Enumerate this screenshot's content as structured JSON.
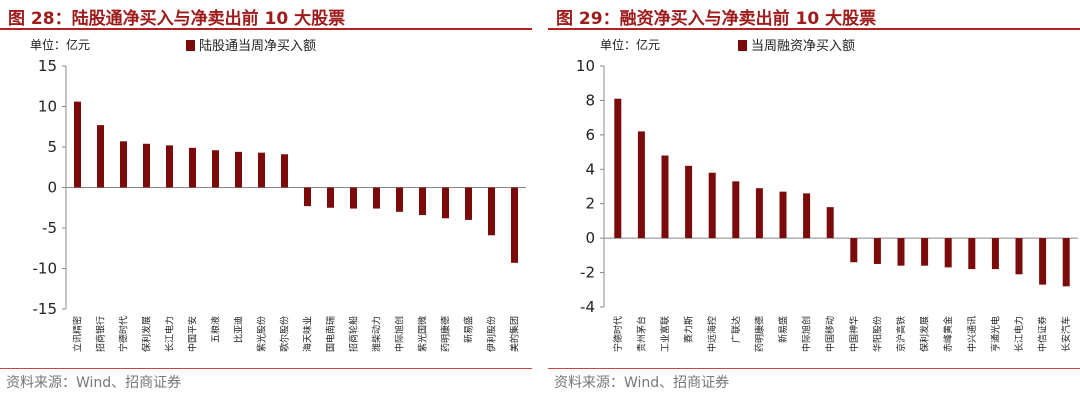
{
  "colors": {
    "bar": "#7b0a0a",
    "title": "#9e1b1b",
    "rule": "#b22222"
  },
  "chart_data": [
    {
      "type": "bar",
      "title": "图 28：陆股通净买入与净卖出前 10 大股票",
      "unit": "单位：亿元",
      "ylim": [
        -15,
        15
      ],
      "yticks": [
        15,
        10,
        5,
        0,
        -5,
        -10,
        -15
      ],
      "categories": [
        "立讯精密",
        "招商银行",
        "宁德时代",
        "保利发展",
        "长江电力",
        "中国平安",
        "五粮液",
        "比亚迪",
        "紫光股份",
        "歌尔股份",
        "海天味业",
        "国电南瑞",
        "招商轮船",
        "潍柴动力",
        "中际旭创",
        "紫光国微",
        "药明康德",
        "新易盛",
        "伊利股份",
        "美的集团"
      ],
      "series": [
        {
          "name": "陆股通当周净买入额",
          "values": [
            10.6,
            7.7,
            5.7,
            5.4,
            5.2,
            4.9,
            4.6,
            4.4,
            4.3,
            4.1,
            -2.3,
            -2.5,
            -2.6,
            -2.6,
            -3.0,
            -3.4,
            -3.8,
            -4.0,
            -5.9,
            -9.3
          ]
        }
      ],
      "source": "资料来源：Wind、招商证券"
    },
    {
      "type": "bar",
      "title": "图 29：融资净买入与净卖出前 10 大股票",
      "unit": "单位：亿元",
      "ylim": [
        -4,
        10
      ],
      "yticks": [
        10,
        8,
        6,
        4,
        2,
        0,
        -2,
        -4
      ],
      "categories": [
        "宁德时代",
        "贵州茅台",
        "工业富联",
        "赛力斯",
        "中远海控",
        "广联达",
        "药明康德",
        "新易盛",
        "中际旭创",
        "中国移动",
        "中国神华",
        "华阳股份",
        "京沪高铁",
        "保利发展",
        "赤峰黄金",
        "中兴通讯",
        "亨通光电",
        "长江电力",
        "中信证券",
        "长安汽车"
      ],
      "series": [
        {
          "name": "当周融资净买入额",
          "values": [
            8.1,
            6.2,
            4.8,
            4.2,
            3.8,
            3.3,
            2.9,
            2.7,
            2.6,
            1.8,
            -1.4,
            -1.5,
            -1.6,
            -1.6,
            -1.7,
            -1.8,
            -1.8,
            -2.1,
            -2.7,
            -2.8
          ]
        }
      ],
      "source": "资料来源：Wind、招商证券"
    }
  ]
}
